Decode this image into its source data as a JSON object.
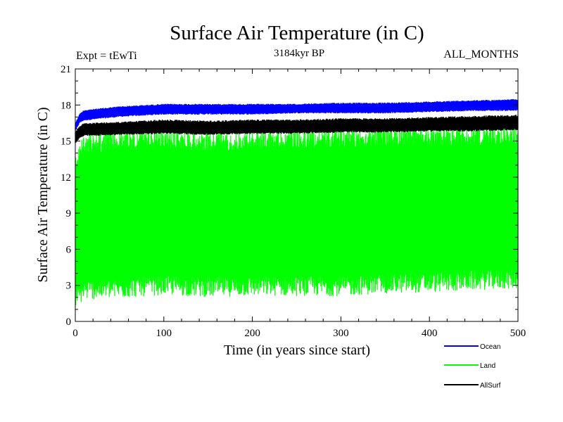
{
  "chart_data": {
    "type": "line",
    "title": "Surface Air Temperature (in C)",
    "subtitle": "3184kyr BP",
    "left_label": "Expt = tEwTi",
    "right_label": "ALL_MONTHS",
    "xlabel": "Time (in years since start)",
    "ylabel": "Surface Air Temperature (in C)",
    "xlim": [
      0,
      500
    ],
    "ylim": [
      0,
      21
    ],
    "xticks": [
      0,
      100,
      200,
      300,
      400,
      500
    ],
    "yticks": [
      0,
      3,
      6,
      9,
      12,
      15,
      18,
      21
    ],
    "legend_position": "bottom-right",
    "series": [
      {
        "name": "Ocean",
        "color": "#0000ff",
        "x": [
          0,
          5,
          10,
          50,
          100,
          150,
          200,
          250,
          300,
          350,
          400,
          450,
          500
        ],
        "low": [
          15.8,
          16.5,
          16.7,
          17.0,
          17.2,
          17.2,
          17.2,
          17.3,
          17.3,
          17.3,
          17.4,
          17.5,
          17.5
        ],
        "high": [
          16.5,
          17.3,
          17.6,
          17.9,
          18.1,
          18.1,
          18.1,
          18.1,
          18.2,
          18.2,
          18.3,
          18.4,
          18.5
        ]
      },
      {
        "name": "Land",
        "color": "#00ff00",
        "x": [
          0,
          5,
          10,
          50,
          100,
          150,
          200,
          250,
          300,
          350,
          400,
          450,
          500
        ],
        "low": [
          1.2,
          1.4,
          1.8,
          1.9,
          2.2,
          2.0,
          2.1,
          2.1,
          2.1,
          2.3,
          2.4,
          2.6,
          2.7
        ],
        "high": [
          13.5,
          15.0,
          15.6,
          15.9,
          16.0,
          15.8,
          16.0,
          16.1,
          16.1,
          16.2,
          16.2,
          16.3,
          16.4
        ]
      },
      {
        "name": "AllSurf",
        "color": "#000000",
        "x": [
          0,
          5,
          10,
          50,
          100,
          150,
          200,
          250,
          300,
          350,
          400,
          450,
          500
        ],
        "low": [
          14.8,
          15.2,
          15.4,
          15.5,
          15.6,
          15.5,
          15.6,
          15.6,
          15.7,
          15.7,
          15.8,
          15.8,
          15.9
        ],
        "high": [
          15.8,
          16.3,
          16.5,
          16.6,
          16.8,
          16.7,
          16.8,
          16.8,
          16.9,
          16.9,
          17.0,
          17.1,
          17.2
        ]
      }
    ]
  }
}
